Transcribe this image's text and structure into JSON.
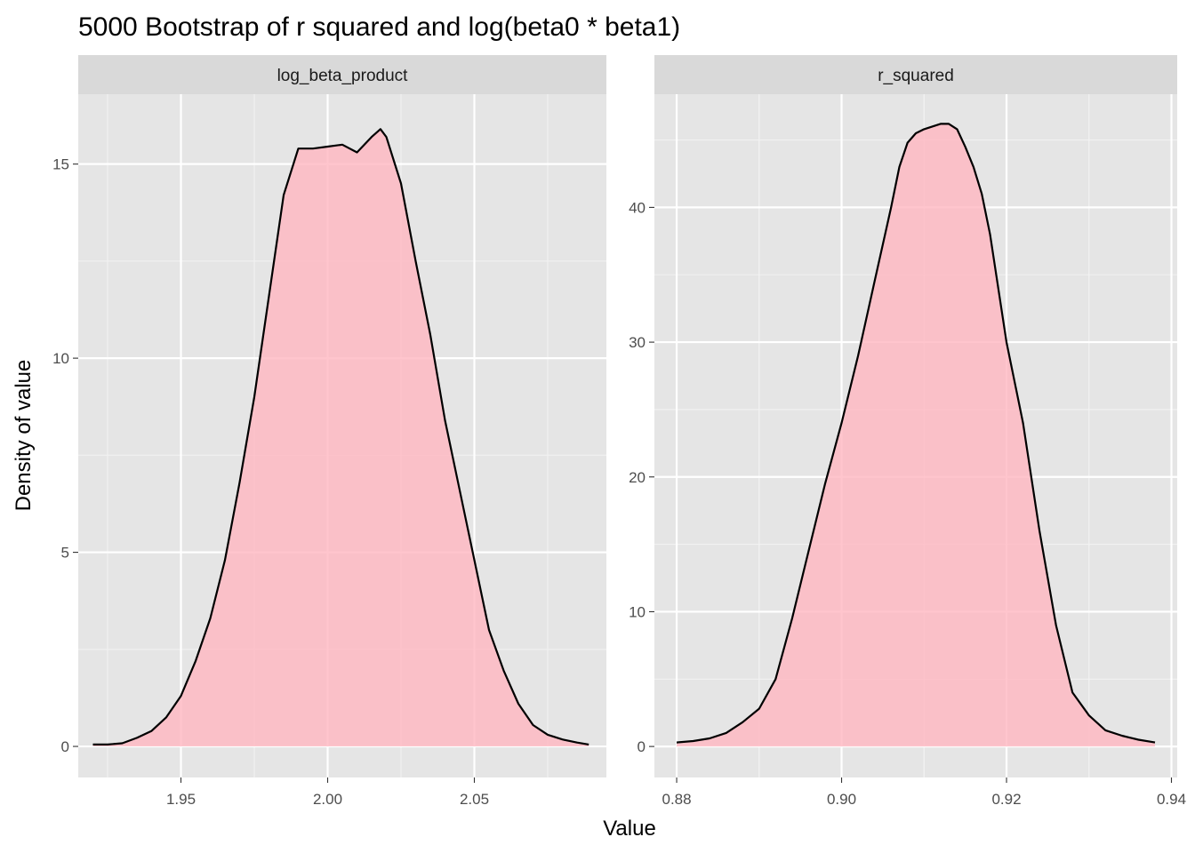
{
  "chart_data": {
    "type": "area",
    "title": "5000 Bootstrap of r squared and log(beta0 * beta1)",
    "xlabel": "Value",
    "ylabel": "Density of value",
    "grid": true,
    "legend": "none",
    "fill_color": "#ffb6c1",
    "line_color": "#000000",
    "panel_background": "#e5e5e5",
    "strip_background": "#d9d9d9",
    "panels": [
      {
        "strip_label": "log_beta_product",
        "xlim": [
          1.915,
          2.095
        ],
        "ylim": [
          -0.8,
          16.8
        ],
        "x_ticks": [
          1.95,
          2.0,
          2.05
        ],
        "x_tick_labels": [
          "1.95",
          "2.00",
          "2.05"
        ],
        "y_ticks": [
          0,
          5,
          10,
          15
        ],
        "y_tick_labels": [
          "0",
          "5",
          "10",
          "15"
        ],
        "x": [
          1.92,
          1.925,
          1.93,
          1.935,
          1.94,
          1.945,
          1.95,
          1.955,
          1.96,
          1.965,
          1.97,
          1.975,
          1.98,
          1.985,
          1.99,
          1.995,
          2.0,
          2.005,
          2.01,
          2.015,
          2.018,
          2.02,
          2.025,
          2.03,
          2.035,
          2.04,
          2.045,
          2.05,
          2.055,
          2.06,
          2.065,
          2.07,
          2.075,
          2.08,
          2.085,
          2.089
        ],
        "y": [
          0.05,
          0.05,
          0.08,
          0.22,
          0.4,
          0.75,
          1.3,
          2.2,
          3.3,
          4.8,
          6.8,
          9.0,
          11.6,
          14.2,
          15.4,
          15.4,
          15.45,
          15.5,
          15.3,
          15.7,
          15.9,
          15.7,
          14.5,
          12.5,
          10.6,
          8.4,
          6.6,
          4.8,
          3.0,
          1.95,
          1.1,
          0.55,
          0.3,
          0.18,
          0.1,
          0.05
        ]
      },
      {
        "strip_label": "r_squared",
        "xlim": [
          0.8773,
          0.9407
        ],
        "ylim": [
          -2.3,
          48.4
        ],
        "x_ticks": [
          0.88,
          0.9,
          0.92,
          0.94
        ],
        "x_tick_labels": [
          "0.88",
          "0.90",
          "0.92",
          "0.94"
        ],
        "y_ticks": [
          0,
          10,
          20,
          30,
          40
        ],
        "y_tick_labels": [
          "0",
          "10",
          "20",
          "30",
          "40"
        ],
        "x": [
          0.88,
          0.882,
          0.884,
          0.886,
          0.888,
          0.89,
          0.892,
          0.894,
          0.896,
          0.898,
          0.9,
          0.902,
          0.904,
          0.906,
          0.907,
          0.908,
          0.909,
          0.91,
          0.911,
          0.912,
          0.913,
          0.914,
          0.915,
          0.916,
          0.917,
          0.918,
          0.92,
          0.922,
          0.924,
          0.926,
          0.928,
          0.93,
          0.932,
          0.934,
          0.936,
          0.938
        ],
        "y": [
          0.3,
          0.4,
          0.6,
          1.0,
          1.8,
          2.8,
          5.0,
          9.5,
          14.5,
          19.5,
          24.0,
          29.0,
          34.5,
          40.0,
          43.0,
          44.8,
          45.5,
          45.8,
          46.0,
          46.2,
          46.2,
          45.8,
          44.5,
          43.0,
          41.0,
          38.0,
          30.0,
          24.0,
          16.0,
          9.0,
          4.0,
          2.3,
          1.2,
          0.8,
          0.5,
          0.3
        ]
      }
    ]
  }
}
